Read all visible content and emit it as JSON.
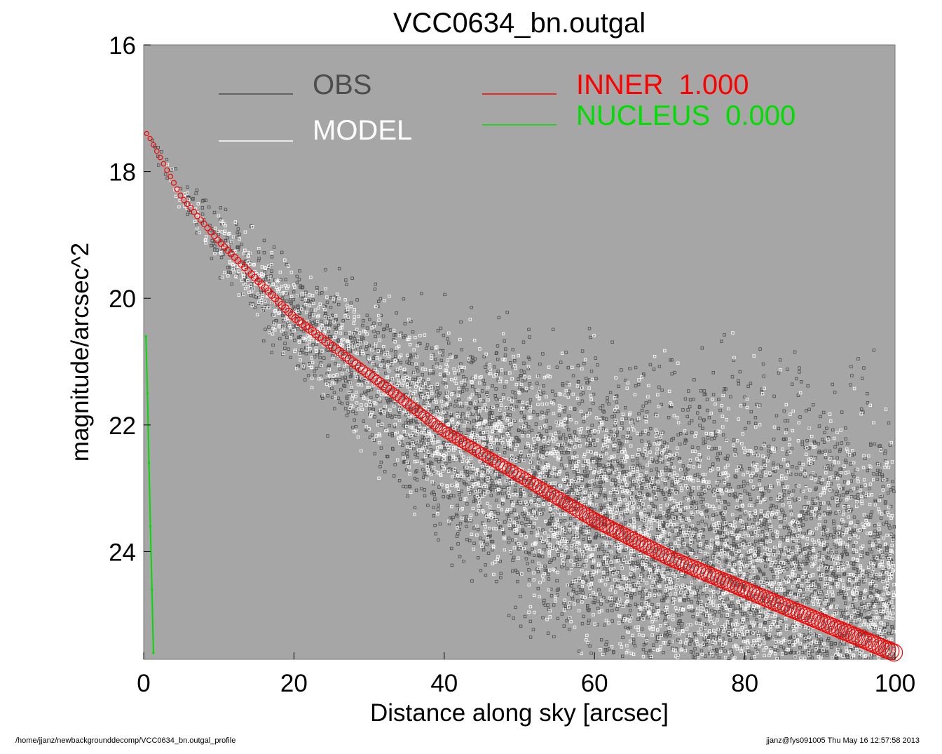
{
  "chart_data": {
    "type": "scatter",
    "title": "VCC0634_bn.outgal",
    "xlabel": "Distance along sky [arcsec]",
    "ylabel": "magnitude/arcsec^2",
    "xlim": [
      0,
      100
    ],
    "ylim": [
      25.7,
      16
    ],
    "y_inverted": true,
    "x_ticks": [
      "0",
      "20",
      "40",
      "60",
      "80",
      "100"
    ],
    "y_ticks": [
      "16",
      "18",
      "20",
      "22",
      "24"
    ],
    "grid": false,
    "legend_placement": "top",
    "background_color": "#a6a6a6",
    "series": [
      {
        "name": "OBS",
        "color": "#4d4d4d",
        "marker": "square"
      },
      {
        "name": "MODEL",
        "color": "#ffffff",
        "marker": "square"
      },
      {
        "name": "INNER",
        "value": "1.000",
        "color": "#ff0000",
        "marker": "circle",
        "x": [
          0.5,
          5,
          10,
          20,
          30,
          40,
          50,
          60,
          70,
          80,
          90,
          100
        ],
        "y": [
          17.4,
          18.4,
          19.1,
          20.3,
          21.2,
          22.1,
          22.8,
          23.5,
          24.1,
          24.6,
          25.1,
          25.6
        ]
      },
      {
        "name": "NUCLEUS",
        "value": "0.000",
        "color": "#00dd00",
        "marker": "line",
        "x": [
          0.3,
          0.5,
          0.7,
          0.9,
          1.1,
          1.3
        ],
        "y": [
          20.6,
          21.5,
          22.6,
          23.6,
          24.6,
          25.6
        ]
      }
    ]
  },
  "footer": {
    "path": "/home/jjanz/newbackgrounddecomp/VCC0634_bn.outgal_profile",
    "stamp": "jjanz@fys091005  Thu May 16 12:57:58 2013"
  }
}
